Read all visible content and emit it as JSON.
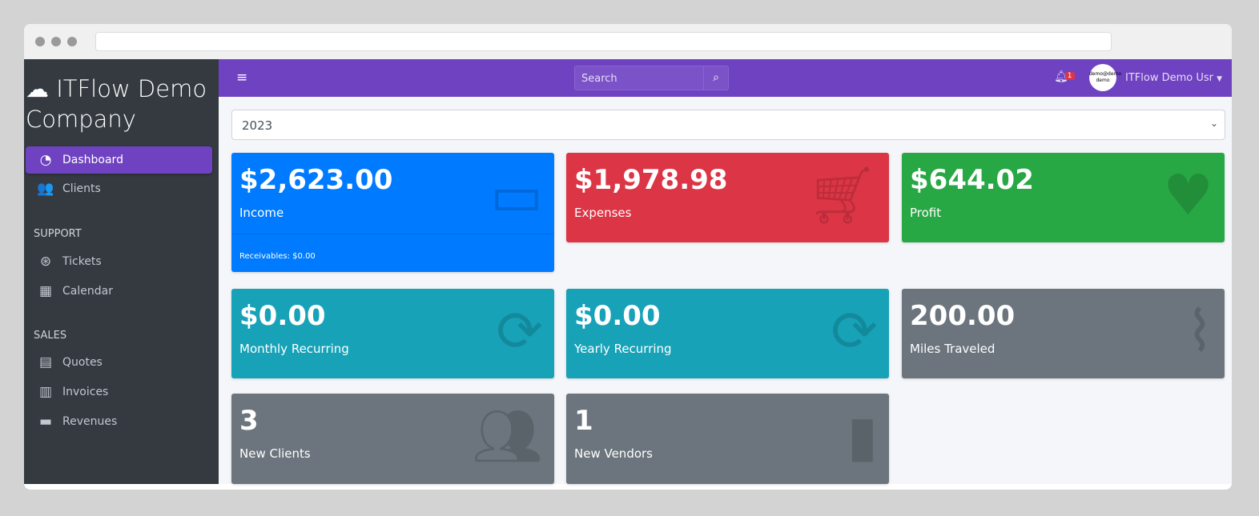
{
  "brand": "ITFlow Demo Company",
  "sidebar": {
    "items": [
      {
        "label": "Dashboard",
        "icon": "tachometer-icon",
        "active": true
      },
      {
        "label": "Clients",
        "icon": "users-icon"
      }
    ],
    "support_header": "SUPPORT",
    "support": [
      {
        "label": "Tickets",
        "icon": "life-ring-icon"
      },
      {
        "label": "Calendar",
        "icon": "calendar-icon"
      }
    ],
    "sales_header": "SALES",
    "sales": [
      {
        "label": "Quotes",
        "icon": "file-icon"
      },
      {
        "label": "Invoices",
        "icon": "file-invoice-icon"
      },
      {
        "label": "Revenues",
        "icon": "credit-card-icon"
      }
    ]
  },
  "topbar": {
    "search_placeholder": "Search",
    "notifications": "1",
    "avatar_text": "demo@demo demo",
    "user": "ITFlow Demo Usr"
  },
  "year_select": "2023",
  "cards": [
    {
      "value": "$2,623.00",
      "label": "Income",
      "footer": "Receivables: $0.00",
      "color": "#007bff",
      "icon": "credit-card-icon"
    },
    {
      "value": "$1,978.98",
      "label": "Expenses",
      "color": "#dc3545",
      "icon": "cart-icon"
    },
    {
      "value": "$644.02",
      "label": "Profit",
      "color": "#28a745",
      "icon": "heart-icon"
    },
    {
      "value": "$0.00",
      "label": "Monthly Recurring",
      "color": "#17a2b8",
      "icon": "sync-icon"
    },
    {
      "value": "$0.00",
      "label": "Yearly Recurring",
      "color": "#17a2b8",
      "icon": "sync-icon"
    },
    {
      "value": "200.00",
      "label": "Miles Traveled",
      "color": "#6c757d",
      "icon": "route-icon"
    },
    {
      "value": "3",
      "label": "New Clients",
      "color": "#6c757d",
      "icon": "users-icon"
    },
    {
      "value": "1",
      "label": "New Vendors",
      "color": "#6c757d",
      "icon": "building-icon"
    }
  ]
}
